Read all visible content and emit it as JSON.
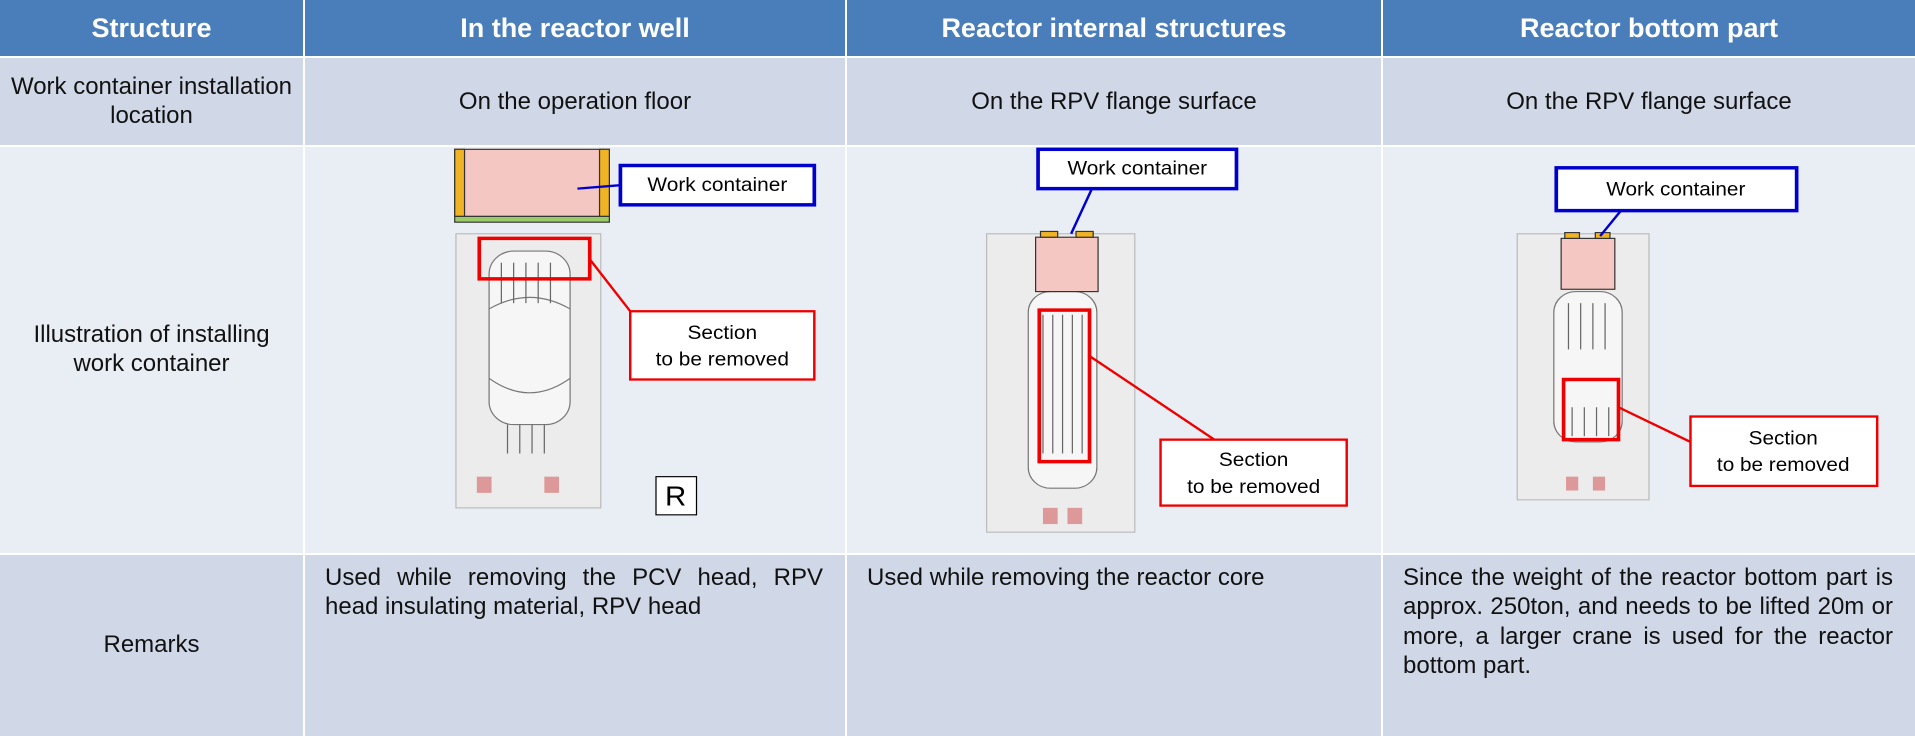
{
  "table": {
    "header": [
      "Structure",
      "In the reactor well",
      "Reactor internal structures",
      "Reactor bottom part"
    ],
    "rows": [
      {
        "label": "Work container installation location",
        "cells": [
          "On the operation floor",
          "On the RPV flange surface",
          "On the RPV flange surface"
        ]
      },
      {
        "label": "Illustration of installing work container",
        "illustrations": [
          {
            "container_label": "Work container",
            "section_label": [
              "Section",
              "to be removed"
            ],
            "marker": "R"
          },
          {
            "container_label": "Work container",
            "section_label": [
              "Section",
              "to be removed"
            ]
          },
          {
            "container_label": "Work container",
            "section_label": [
              "Section",
              "to be removed"
            ]
          }
        ]
      },
      {
        "label": "Remarks",
        "cells": [
          "Used while removing the PCV head, RPV head insulating material, RPV head",
          "Used while removing the reactor core",
          "Since the weight of the reactor bottom part is approx. 250ton, and needs to be lifted 20m or more, a larger crane is used for the reactor bottom part."
        ]
      }
    ]
  }
}
